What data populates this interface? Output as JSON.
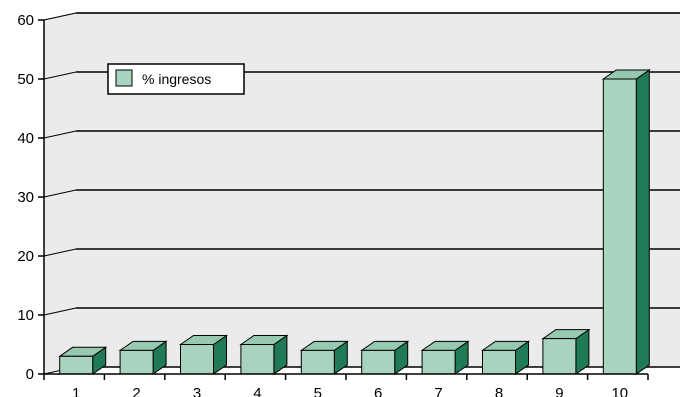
{
  "chart_data": {
    "type": "bar",
    "categories": [
      "1",
      "2",
      "3",
      "4",
      "5",
      "6",
      "7",
      "8",
      "9",
      "10"
    ],
    "series": [
      {
        "name": "% ingresos",
        "values": [
          3,
          4,
          5,
          5,
          4,
          4,
          4,
          4,
          6,
          50
        ]
      }
    ],
    "ylim": [
      0,
      60
    ],
    "yticks": [
      "0",
      "10",
      "20",
      "30",
      "40",
      "50",
      "60"
    ],
    "grid": true,
    "legend": "top-left",
    "style": "3d-column",
    "colors": {
      "bar_front": "#a8d4bf",
      "bar_top": "#96c9b0",
      "bar_side": "#1f7a55",
      "plot_bg": "#ebebeb",
      "wall_top": "#9a9a9a"
    }
  }
}
